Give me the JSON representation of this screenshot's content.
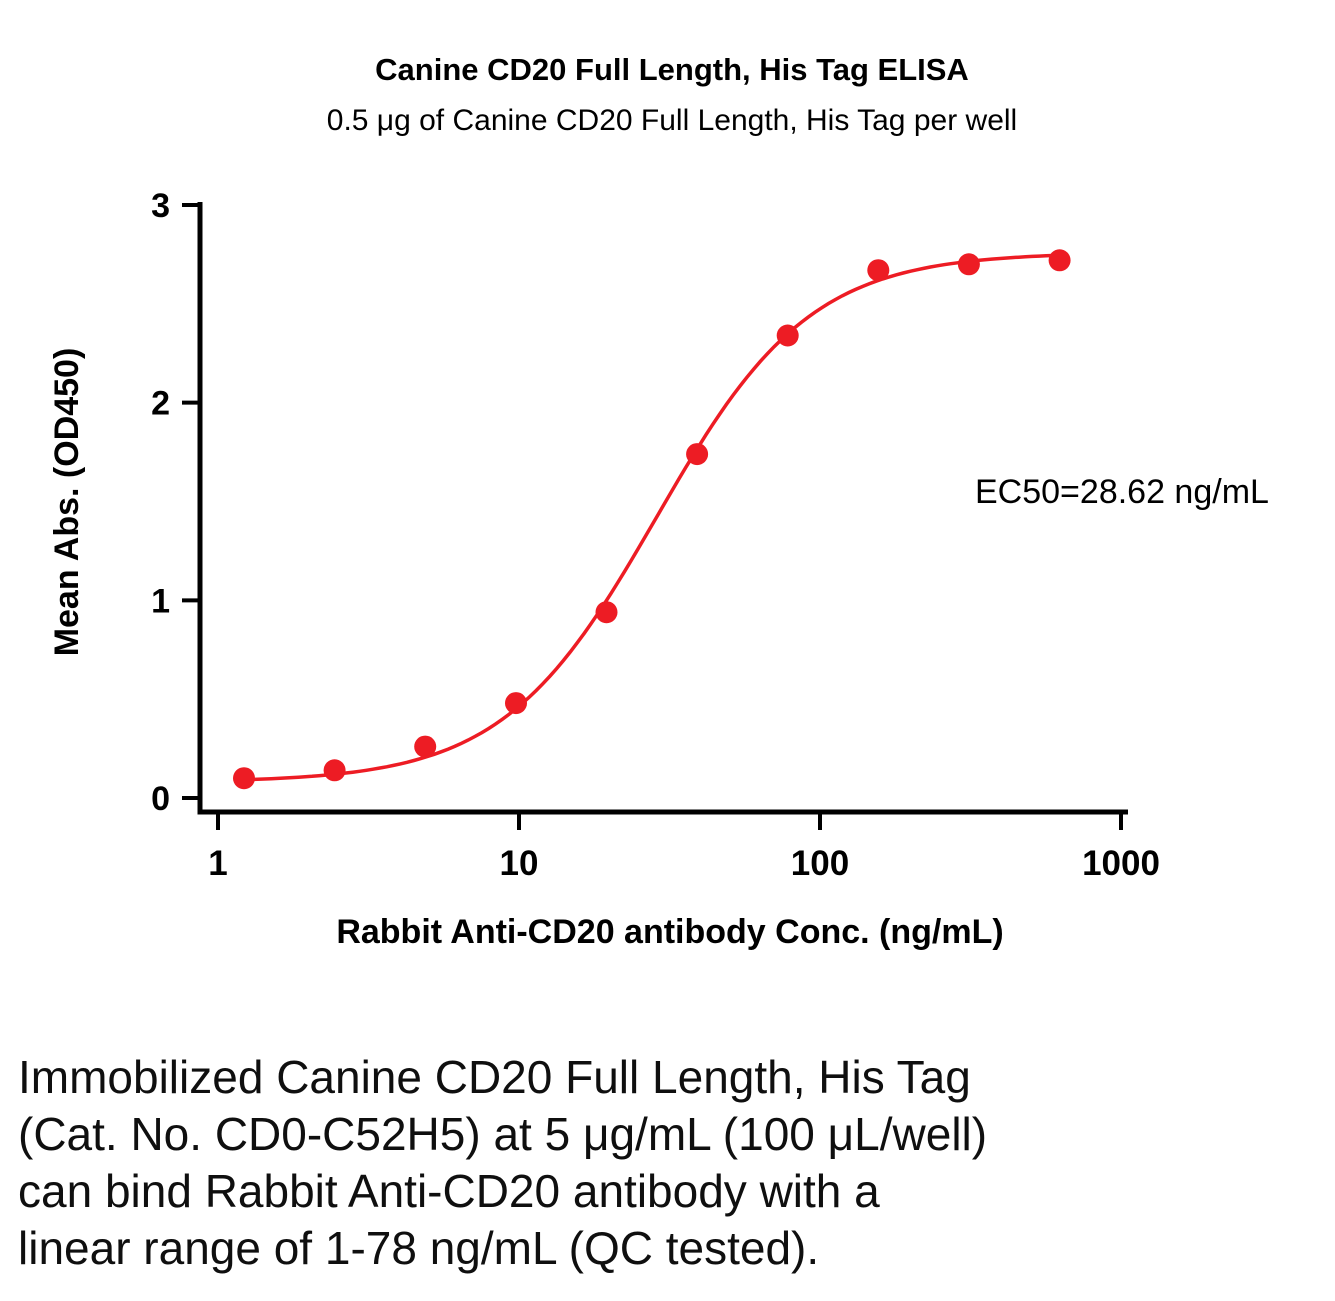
{
  "chart_data": {
    "type": "scatter",
    "title": "Canine CD20 Full Length, His Tag ELISA",
    "subtitle": "0.5 μg of Canine CD20 Full Length, His Tag per well",
    "xlabel": "Rabbit Anti-CD20 antibody Conc. (ng/mL)",
    "ylabel": "Mean Abs. (OD450)",
    "annotation": "EC50=28.62 ng/mL",
    "xscale": "log",
    "xlim": [
      1,
      1000
    ],
    "ylim": [
      0,
      3
    ],
    "xticks": [
      1,
      10,
      100,
      1000
    ],
    "yticks": [
      0,
      1,
      2,
      3
    ],
    "grid": false,
    "legend": "none",
    "color": "#ED1C24",
    "x": [
      1.22,
      2.44,
      4.88,
      9.77,
      19.53,
      39.06,
      78.13,
      156.25,
      312.5,
      625
    ],
    "y": [
      0.1,
      0.14,
      0.26,
      0.48,
      0.94,
      1.74,
      2.34,
      2.67,
      2.7,
      2.72
    ],
    "fit": {
      "model": "4PL",
      "bottom": 0.08,
      "top": 2.76,
      "ec50": 28.62,
      "hill": 1.7
    }
  },
  "caption": {
    "lines": [
      "Immobilized Canine CD20 Full Length, His Tag",
      "(Cat. No. CD0-C52H5) at 5 μg/mL (100 μL/well)",
      "can bind Rabbit Anti-CD20 antibody with a",
      "linear range of 1-78 ng/mL (QC tested)."
    ]
  }
}
